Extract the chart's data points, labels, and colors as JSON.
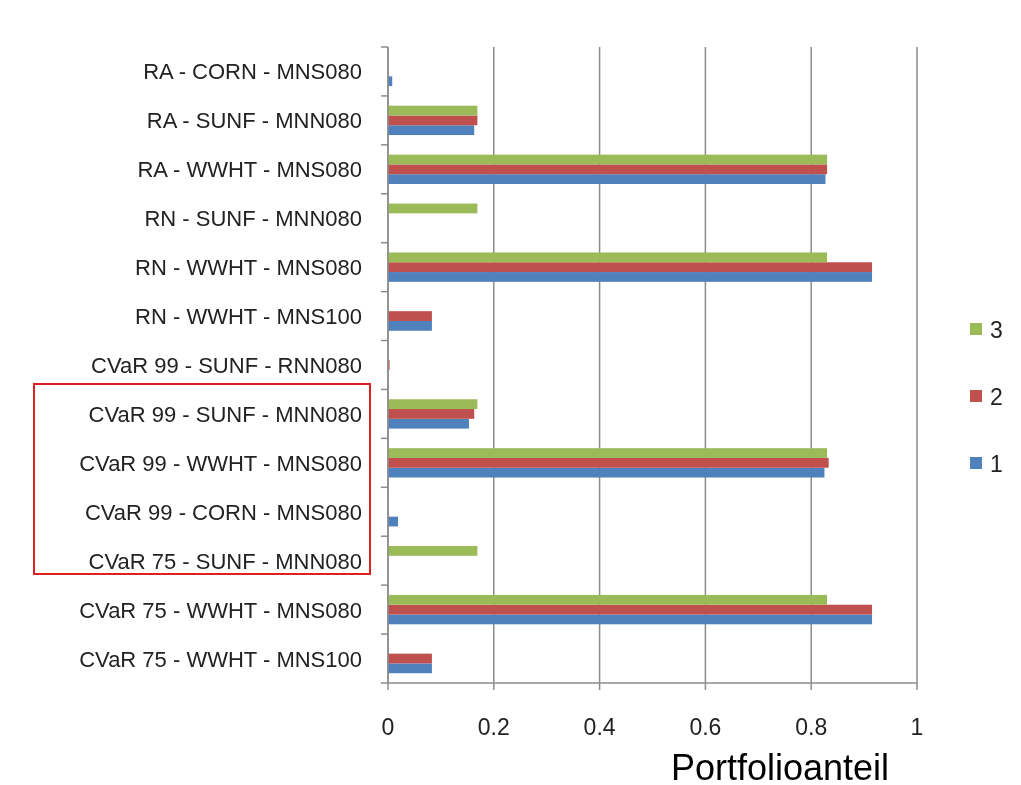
{
  "chart_data": {
    "type": "bar",
    "orientation": "horizontal",
    "xlabel": "Portfolioanteil",
    "categories": [
      "RA - CORN - MNS080",
      "RA - SUNF - MNN080",
      "RA - WWHT - MNS080",
      "RN - SUNF - MNN080",
      "RN - WWHT - MNS080",
      "RN - WWHT - MNS100",
      "CVaR 99 - SUNF - RNN080",
      "CVaR 99 - SUNF - MNN080",
      "CVaR 99 - WWHT - MNS080",
      "CVaR 99 - CORN - MNS080",
      "CVaR 75 - SUNF - MNN080",
      "CVaR 75 - WWHT - MNS080",
      "CVaR 75 - WWHT - MNS100"
    ],
    "series": [
      {
        "name": "1",
        "color": "#4f81bd",
        "values": [
          0.008,
          0.163,
          0.827,
          0,
          0.915,
          0.083,
          0,
          0.153,
          0.825,
          0.019,
          0,
          0.915,
          0.083
        ]
      },
      {
        "name": "2",
        "color": "#c0504d",
        "values": [
          0,
          0.169,
          0.83,
          0,
          0.915,
          0.083,
          0.003,
          0.163,
          0.833,
          0,
          0,
          0.915,
          0.083
        ]
      },
      {
        "name": "3",
        "color": "#9bbb59",
        "values": [
          0,
          0.169,
          0.83,
          0.169,
          0.83,
          0,
          0,
          0.169,
          0.83,
          0,
          0.169,
          0.83,
          0
        ]
      }
    ],
    "xlim": [
      0,
      1
    ],
    "xticks": [
      0,
      0.2,
      0.4,
      0.6,
      0.8,
      1
    ],
    "grid": "x",
    "legend": "right"
  }
}
